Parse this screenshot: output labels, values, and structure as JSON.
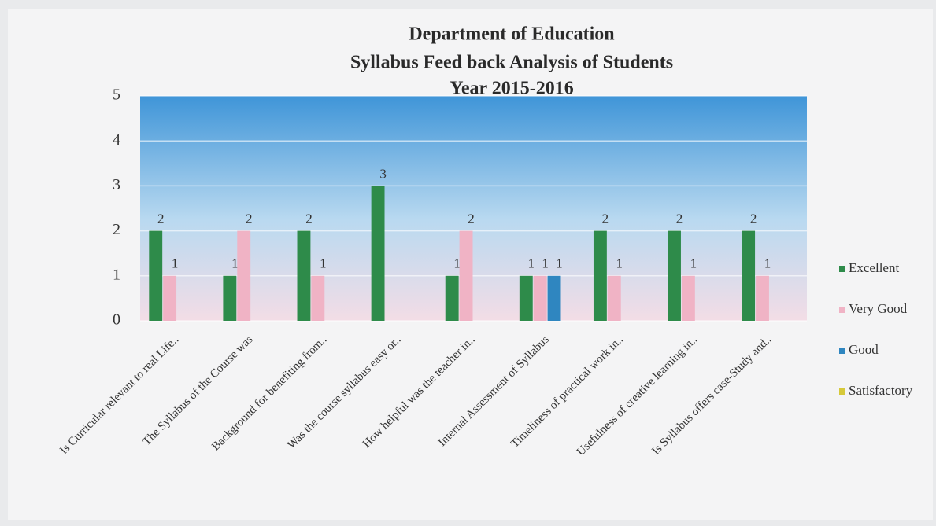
{
  "chart_data": {
    "type": "bar",
    "title": [
      "Department  of Education",
      "Syllabus Feed back Analysis  of Students",
      "Year 2015-2016"
    ],
    "categories": [
      "Is Curricular relevant to real Life..",
      "The Syllabus of the Course was",
      "Background for benefiting from..",
      "Was the course syllabus easy or..",
      "How helpful was the teacher in..",
      "Internal Assessment of Syllabus",
      "Timeliness of practical work in..",
      "Usefulness of creative learning in..",
      "Is Syllabus offers case-Study and.."
    ],
    "series": [
      {
        "name": "Excellent",
        "color": "#2e8b4a",
        "values": [
          2,
          1,
          2,
          3,
          1,
          1,
          2,
          2,
          2
        ]
      },
      {
        "name": "Very Good",
        "color": "#f0b3c5",
        "values": [
          1,
          2,
          1,
          null,
          2,
          1,
          1,
          1,
          1
        ]
      },
      {
        "name": "Good",
        "color": "#2f86c0",
        "values": [
          null,
          null,
          null,
          null,
          null,
          1,
          null,
          null,
          null
        ]
      },
      {
        "name": "Satisfactory",
        "color": "#d6c93a",
        "values": [
          null,
          null,
          null,
          null,
          null,
          null,
          null,
          null,
          null
        ]
      }
    ],
    "ylim": [
      0,
      5
    ],
    "yticks": [
      0,
      1,
      2,
      3,
      4,
      5
    ],
    "grid": true,
    "legend": "right"
  }
}
